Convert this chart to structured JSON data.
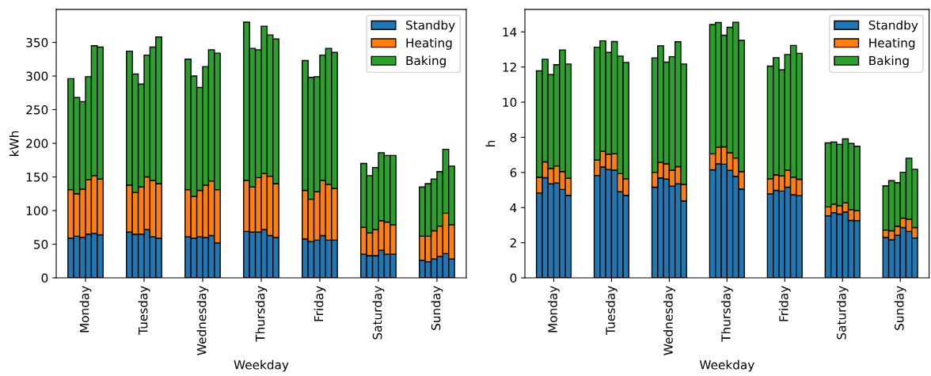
{
  "chart_data": [
    {
      "type": "bar",
      "stacked": true,
      "xlabel": "Weekday",
      "ylabel": "kWh",
      "legend": "top right",
      "grid": false,
      "categories": [
        null,
        null,
        null,
        null,
        "Monday",
        null,
        null,
        null,
        null,
        null,
        null,
        null,
        null,
        null,
        "Tuesday",
        null,
        null,
        null,
        null,
        null,
        null,
        null,
        null,
        null,
        "Wednesday",
        null,
        null,
        null,
        null,
        null,
        null,
        null,
        null,
        null,
        "Thursday",
        null,
        null,
        null,
        null,
        null,
        null,
        null,
        null,
        null,
        "Friday",
        null,
        null,
        null,
        null,
        null,
        null,
        null,
        null,
        null,
        "Saturday",
        null,
        null,
        null,
        null,
        null,
        null,
        null,
        null,
        null,
        "Sunday",
        null,
        null,
        null,
        null,
        null
      ],
      "ylim": [
        0,
        399
      ],
      "yticks": [
        0,
        50,
        100,
        150,
        200,
        250,
        300,
        350
      ],
      "series": [
        {
          "name": "Standby",
          "color": "#1f77b4",
          "values": [
            null,
            null,
            59,
            62,
            60,
            65,
            66,
            64,
            null,
            null,
            null,
            null,
            68,
            65,
            65,
            72,
            61,
            59,
            null,
            null,
            null,
            null,
            61,
            59,
            61,
            60,
            63,
            52,
            null,
            null,
            null,
            null,
            69,
            68,
            68,
            72,
            63,
            60,
            null,
            null,
            null,
            null,
            58,
            54,
            56,
            63,
            56,
            56,
            null,
            null,
            null,
            null,
            35,
            33,
            33,
            41,
            35,
            35,
            null,
            null,
            null,
            null,
            26,
            24,
            28,
            32,
            36,
            28,
            null,
            null
          ]
        },
        {
          "name": "Heating",
          "color": "#ff7f0e",
          "values": [
            null,
            null,
            72,
            63,
            72,
            81,
            86,
            83,
            null,
            null,
            null,
            null,
            70,
            62,
            70,
            78,
            84,
            81,
            null,
            null,
            null,
            null,
            70,
            62,
            69,
            78,
            81,
            79,
            null,
            null,
            null,
            null,
            76,
            67,
            81,
            83,
            88,
            80,
            null,
            null,
            null,
            null,
            72,
            63,
            72,
            82,
            83,
            77,
            null,
            null,
            null,
            null,
            40,
            34,
            39,
            44,
            48,
            44,
            null,
            null,
            null,
            null,
            36,
            38,
            42,
            45,
            60,
            51,
            null,
            null
          ]
        },
        {
          "name": "Baking",
          "color": "#2ca02c",
          "values": [
            null,
            null,
            165,
            143,
            130,
            153,
            193,
            196,
            null,
            null,
            null,
            null,
            199,
            176,
            153,
            181,
            198,
            218,
            null,
            null,
            null,
            null,
            194,
            179,
            153,
            176,
            195,
            203,
            null,
            null,
            null,
            null,
            235,
            206,
            190,
            219,
            210,
            215,
            null,
            null,
            null,
            null,
            193,
            181,
            171,
            186,
            202,
            202,
            null,
            null,
            null,
            null,
            95,
            85,
            92,
            101,
            99,
            103,
            null,
            null,
            null,
            null,
            73,
            78,
            77,
            81,
            95,
            87,
            null,
            null
          ]
        }
      ]
    },
    {
      "type": "bar",
      "stacked": true,
      "xlabel": "Weekday",
      "ylabel": "h",
      "legend": "top right",
      "grid": false,
      "categories": [
        null,
        null,
        null,
        null,
        "Monday",
        null,
        null,
        null,
        null,
        null,
        null,
        null,
        null,
        null,
        "Tuesday",
        null,
        null,
        null,
        null,
        null,
        null,
        null,
        null,
        null,
        "Wednesday",
        null,
        null,
        null,
        null,
        null,
        null,
        null,
        null,
        null,
        "Thursday",
        null,
        null,
        null,
        null,
        null,
        null,
        null,
        null,
        null,
        "Friday",
        null,
        null,
        null,
        null,
        null,
        null,
        null,
        null,
        null,
        "Saturday",
        null,
        null,
        null,
        null,
        null,
        null,
        null,
        null,
        null,
        "Sunday",
        null,
        null,
        null,
        null,
        null
      ],
      "ylim": [
        0,
        15.28
      ],
      "yticks": [
        0,
        2,
        4,
        6,
        8,
        10,
        12,
        14
      ],
      "series": [
        {
          "name": "Standby",
          "color": "#1f77b4",
          "values": [
            null,
            null,
            4.84,
            5.7,
            5.35,
            5.4,
            5.03,
            4.7,
            null,
            null,
            null,
            null,
            5.83,
            6.31,
            6.17,
            6.13,
            4.9,
            4.7,
            null,
            null,
            null,
            null,
            5.16,
            5.69,
            5.62,
            5.22,
            5.35,
            4.38,
            null,
            null,
            null,
            null,
            6.15,
            6.49,
            6.47,
            6.12,
            5.78,
            5.06,
            null,
            null,
            null,
            null,
            4.78,
            4.98,
            4.94,
            5.16,
            4.73,
            4.68,
            null,
            null,
            null,
            null,
            3.53,
            3.71,
            3.63,
            3.75,
            3.27,
            3.26,
            null,
            null,
            null,
            null,
            2.3,
            2.17,
            2.43,
            2.86,
            2.64,
            2.27,
            null,
            null
          ]
        },
        {
          "name": "Heating",
          "color": "#ff7f0e",
          "values": [
            null,
            null,
            0.88,
            0.9,
            0.88,
            0.97,
            1.02,
            0.97,
            null,
            null,
            null,
            null,
            0.88,
            0.89,
            0.87,
            0.94,
            1.03,
            0.94,
            null,
            null,
            null,
            null,
            0.85,
            0.88,
            0.87,
            0.91,
            0.98,
            0.94,
            null,
            null,
            null,
            null,
            0.91,
            0.95,
            0.99,
            1.0,
            1.04,
            0.99,
            null,
            null,
            null,
            null,
            0.86,
            0.88,
            0.86,
            0.97,
            1.0,
            0.93,
            null,
            null,
            null,
            null,
            0.51,
            0.49,
            0.48,
            0.52,
            0.61,
            0.56,
            null,
            null,
            null,
            null,
            0.42,
            0.51,
            0.51,
            0.54,
            0.7,
            0.59,
            null,
            null
          ]
        },
        {
          "name": "Baking",
          "color": "#2ca02c",
          "values": [
            null,
            null,
            6.06,
            5.84,
            5.34,
            5.76,
            6.92,
            6.5,
            null,
            null,
            null,
            null,
            6.42,
            6.29,
            5.79,
            6.38,
            6.69,
            6.62,
            null,
            null,
            null,
            null,
            6.51,
            6.64,
            5.79,
            6.46,
            7.11,
            6.85,
            null,
            null,
            null,
            null,
            7.36,
            7.09,
            6.35,
            7.14,
            7.73,
            7.47,
            null,
            null,
            null,
            null,
            6.41,
            6.67,
            6.04,
            6.58,
            7.5,
            7.17,
            null,
            null,
            null,
            null,
            3.64,
            3.53,
            3.49,
            3.64,
            3.77,
            3.67,
            null,
            null,
            null,
            null,
            2.52,
            2.85,
            2.48,
            2.61,
            3.47,
            3.32,
            null,
            null
          ]
        }
      ]
    }
  ]
}
